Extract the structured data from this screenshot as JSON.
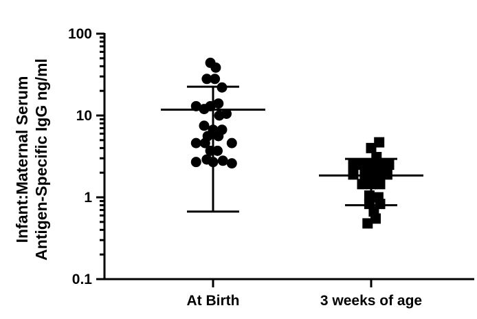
{
  "chart_data": {
    "type": "scatter",
    "yscale": "log",
    "ylim": [
      0.1,
      100
    ],
    "yticks": [
      {
        "value": 0.1,
        "label": "0.1"
      },
      {
        "value": 1,
        "label": "1"
      },
      {
        "value": 10,
        "label": "10"
      },
      {
        "value": 100,
        "label": "100"
      }
    ],
    "ylabel_lines": [
      "Infant:Maternal Serum",
      "Antigen-Specific IgG ng/ml"
    ],
    "xlabel": "",
    "title": "",
    "grid": false,
    "categories": [
      "At Birth",
      "3 weeks of age"
    ],
    "series": [
      {
        "name": "At Birth",
        "marker": "circle",
        "color": "#000000",
        "mean": 11.8,
        "sd_upper": 22.5,
        "sd_lower": 0.67,
        "points": [
          {
            "y": 44.0,
            "jitter": -0.3
          },
          {
            "y": 38.5,
            "jitter": 0.3
          },
          {
            "y": 28.0,
            "jitter": -0.7
          },
          {
            "y": 28.0,
            "jitter": 0.2
          },
          {
            "y": 22.0,
            "jitter": 1.0
          },
          {
            "y": 14.0,
            "jitter": 0.6
          },
          {
            "y": 13.0,
            "jitter": -1.9
          },
          {
            "y": 13.0,
            "jitter": -0.3
          },
          {
            "y": 12.0,
            "jitter": -1.0
          },
          {
            "y": 10.5,
            "jitter": 1.5
          },
          {
            "y": 10.0,
            "jitter": 0.7
          },
          {
            "y": 7.5,
            "jitter": -1.0
          },
          {
            "y": 6.7,
            "jitter": 0.0
          },
          {
            "y": 6.7,
            "jitter": 1.0
          },
          {
            "y": 5.6,
            "jitter": -0.6
          },
          {
            "y": 5.6,
            "jitter": 0.6
          },
          {
            "y": 4.6,
            "jitter": -1.9
          },
          {
            "y": 4.6,
            "jitter": -0.9
          },
          {
            "y": 4.6,
            "jitter": 2.1
          },
          {
            "y": 3.7,
            "jitter": -0.3
          },
          {
            "y": 3.7,
            "jitter": 0.5
          },
          {
            "y": 2.9,
            "jitter": -0.7
          },
          {
            "y": 2.8,
            "jitter": 1.1
          },
          {
            "y": 2.7,
            "jitter": -1.9
          },
          {
            "y": 2.7,
            "jitter": 0.0
          },
          {
            "y": 2.6,
            "jitter": 2.1
          }
        ]
      },
      {
        "name": "3 weeks of age",
        "marker": "square",
        "color": "#000000",
        "mean": 1.85,
        "sd_upper": 2.95,
        "sd_lower": 0.8,
        "points": [
          {
            "y": 4.7,
            "jitter": 0.9
          },
          {
            "y": 4.0,
            "jitter": 0.0
          },
          {
            "y": 3.1,
            "jitter": 0.6
          },
          {
            "y": 2.5,
            "jitter": -2.0
          },
          {
            "y": 2.5,
            "jitter": -1.0
          },
          {
            "y": 2.5,
            "jitter": 0.0
          },
          {
            "y": 2.5,
            "jitter": 1.0
          },
          {
            "y": 2.5,
            "jitter": 2.0
          },
          {
            "y": 1.9,
            "jitter": -2.0
          },
          {
            "y": 1.9,
            "jitter": -0.7
          },
          {
            "y": 1.9,
            "jitter": 0.0
          },
          {
            "y": 1.9,
            "jitter": 0.8
          },
          {
            "y": 1.9,
            "jitter": 1.8
          },
          {
            "y": 1.45,
            "jitter": -1.0
          },
          {
            "y": 1.45,
            "jitter": 0.0
          },
          {
            "y": 1.45,
            "jitter": 1.0
          },
          {
            "y": 1.05,
            "jitter": -0.2
          },
          {
            "y": 1.0,
            "jitter": 0.8
          },
          {
            "y": 0.83,
            "jitter": -0.2
          },
          {
            "y": 0.83,
            "jitter": 1.0
          },
          {
            "y": 0.67,
            "jitter": 0.3
          },
          {
            "y": 0.55,
            "jitter": 0.5
          },
          {
            "y": 0.48,
            "jitter": -0.4
          }
        ]
      }
    ]
  }
}
